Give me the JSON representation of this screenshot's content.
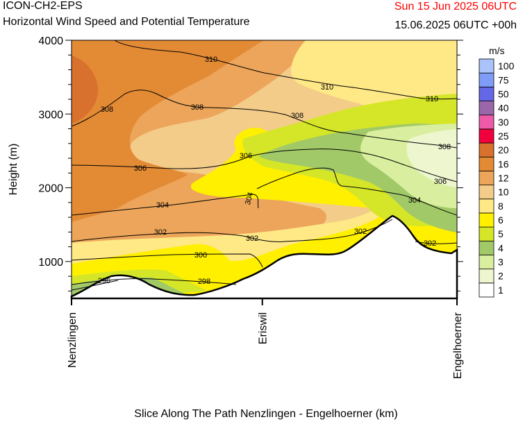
{
  "header": {
    "model": "ICON-CH2-EPS",
    "subtitle": "Horizontal Wind Speed and Potential Temperature",
    "valid_time": "Sun 15 Jun 2025 06UTC",
    "run_time": "15.06.2025 06UTC +00h",
    "valid_time_color": "#ff0000"
  },
  "chart_data": {
    "type": "heatmap",
    "title": "Horizontal Wind Speed and Potential Temperature",
    "xlabel": "Slice Along The Path Nenzlingen - Engelhoerner (km)",
    "ylabel": "Height (m)",
    "ylim": [
      500,
      4000
    ],
    "y_ticks": [
      "1000",
      "2000",
      "3000",
      "4000"
    ],
    "x_ticks": [
      "Nenzlingen",
      "Eriswil",
      "Engelhoerner"
    ],
    "grid": false,
    "colorbar": {
      "unit": "m/s",
      "placement": "right",
      "levels": [
        "1",
        "2",
        "3",
        "4",
        "5",
        "6",
        "8",
        "10",
        "12",
        "16",
        "20",
        "25",
        "30",
        "40",
        "50",
        "75",
        "100"
      ],
      "colors": [
        "#ffffff",
        "#eef6cf",
        "#d9ef9f",
        "#a2c968",
        "#d5e628",
        "#fff000",
        "#ffe886",
        "#f3cc8a",
        "#eca55a",
        "#e38a35",
        "#d8702e",
        "#f0003c",
        "#ef5aa8",
        "#9b67ab",
        "#6468e6",
        "#7f9cf8",
        "#abc3fb"
      ]
    },
    "isentropes": {
      "name": "Potential Temperature",
      "labels": [
        "296",
        "298",
        "300",
        "302",
        "302",
        "302",
        "302",
        "304",
        "304",
        "304",
        "306",
        "306",
        "306",
        "306",
        "308",
        "308",
        "308",
        "308",
        "310",
        "310",
        "310"
      ]
    }
  }
}
